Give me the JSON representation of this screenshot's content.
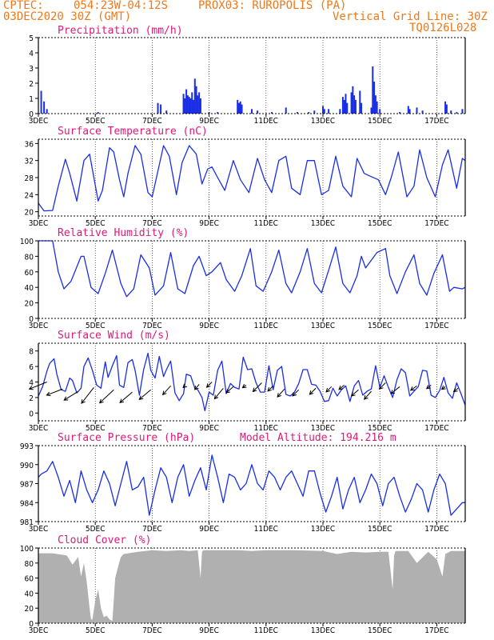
{
  "header": {
    "source": "CPTEC:",
    "coords": "054:23W-04:12S",
    "station": "PROX03: RUROPOLIS (PA)",
    "run": "03DEC2020 30Z (GMT)",
    "grid_note": "Vertical Grid Line: 30Z",
    "code": "TQ0126L028"
  },
  "colors": {
    "line": "#1a2ee6",
    "title": "#e0187a",
    "header": "#f07818",
    "cloud": "#b0b0b0"
  },
  "x_labels": [
    "3DEC",
    "5DEC",
    "7DEC",
    "9DEC",
    "11DEC",
    "13DEC",
    "15DEC",
    "17DEC"
  ],
  "chart_data": [
    {
      "id": "precip",
      "type": "bar",
      "title": "Precipitation (mm/h)",
      "ylim": [
        0,
        5
      ],
      "yticks": [
        "0",
        "1",
        "2",
        "3",
        "4",
        "5"
      ],
      "x_start_day": 3,
      "x_end_day": 18,
      "values": [
        [
          3.1,
          1.5
        ],
        [
          3.2,
          0.8
        ],
        [
          3.3,
          0.3
        ],
        [
          5.1,
          0.1
        ],
        [
          7.2,
          0.7
        ],
        [
          7.3,
          0.6
        ],
        [
          7.5,
          0.2
        ],
        [
          8.1,
          1.3
        ],
        [
          8.15,
          1.0
        ],
        [
          8.2,
          1.6
        ],
        [
          8.25,
          1.2
        ],
        [
          8.3,
          1.1
        ],
        [
          8.35,
          1.0
        ],
        [
          8.4,
          1.4
        ],
        [
          8.45,
          0.9
        ],
        [
          8.5,
          2.3
        ],
        [
          8.55,
          1.8
        ],
        [
          8.6,
          1.2
        ],
        [
          8.65,
          1.4
        ],
        [
          8.7,
          1.0
        ],
        [
          9.0,
          0.1
        ],
        [
          9.3,
          0.1
        ],
        [
          10.0,
          0.9
        ],
        [
          10.05,
          0.7
        ],
        [
          10.1,
          0.8
        ],
        [
          10.15,
          0.6
        ],
        [
          10.5,
          0.3
        ],
        [
          10.7,
          0.2
        ],
        [
          11.2,
          0.1
        ],
        [
          11.7,
          0.4
        ],
        [
          12.1,
          0.1
        ],
        [
          12.5,
          0.1
        ],
        [
          12.7,
          0.2
        ],
        [
          13.0,
          0.5
        ],
        [
          13.05,
          0.3
        ],
        [
          13.2,
          0.3
        ],
        [
          13.6,
          0.3
        ],
        [
          13.7,
          1.1
        ],
        [
          13.75,
          0.9
        ],
        [
          13.8,
          1.3
        ],
        [
          13.85,
          0.7
        ],
        [
          14.0,
          1.4
        ],
        [
          14.05,
          1.8
        ],
        [
          14.1,
          1.2
        ],
        [
          14.15,
          0.9
        ],
        [
          14.3,
          1.5
        ],
        [
          14.35,
          0.7
        ],
        [
          14.7,
          0.4
        ],
        [
          14.75,
          3.1
        ],
        [
          14.8,
          2.1
        ],
        [
          14.85,
          1.2
        ],
        [
          14.9,
          0.8
        ],
        [
          15.0,
          0.3
        ],
        [
          15.7,
          0.1
        ],
        [
          16.0,
          0.5
        ],
        [
          16.05,
          0.3
        ],
        [
          16.3,
          0.4
        ],
        [
          16.5,
          0.2
        ],
        [
          17.3,
          0.8
        ],
        [
          17.35,
          0.6
        ],
        [
          17.5,
          0.2
        ],
        [
          17.7,
          0.1
        ],
        [
          17.9,
          0.3
        ]
      ]
    },
    {
      "id": "temp",
      "type": "line",
      "title": "Surface Temperature (nC)",
      "ylim": [
        19,
        37
      ],
      "yticks": [
        "20",
        "24",
        "28",
        "32",
        "36"
      ],
      "ytick_values": [
        20,
        24,
        28,
        32,
        36
      ],
      "x": [
        3,
        3.2,
        3.5,
        3.7,
        3.95,
        4.1,
        4.35,
        4.6,
        4.8,
        5.1,
        5.25,
        5.5,
        5.65,
        5.85,
        6.0,
        6.15,
        6.4,
        6.6,
        6.85,
        7.0,
        7.4,
        7.6,
        7.85,
        8.05,
        8.3,
        8.55,
        8.75,
        8.95,
        9.1,
        9.3,
        9.55,
        9.85,
        10.1,
        10.4,
        10.7,
        10.95,
        11.2,
        11.45,
        11.7,
        11.9,
        12.2,
        12.45,
        12.7,
        12.95,
        13.2,
        13.45,
        13.7,
        14.0,
        14.2,
        14.45,
        14.6,
        14.95,
        15.2,
        15.4,
        15.65,
        15.95,
        16.2,
        16.4,
        16.65,
        16.95,
        17.2,
        17.4,
        17.7,
        17.9,
        18.0
      ],
      "values": [
        22,
        20.2,
        20.3,
        26,
        32.3,
        29,
        22.5,
        32,
        33.5,
        22.5,
        25,
        35,
        34,
        27.5,
        23.5,
        29,
        35.5,
        33.5,
        24.5,
        23.5,
        35.5,
        33,
        24,
        31.5,
        35.5,
        33.5,
        26.5,
        30,
        30.5,
        28,
        25,
        32,
        27.5,
        24.5,
        32.5,
        27.5,
        24.5,
        32,
        33,
        25.5,
        24,
        32,
        32,
        24,
        25,
        33,
        26,
        23.5,
        32.5,
        29,
        28.5,
        27.5,
        24,
        28,
        34,
        23.5,
        26,
        34.5,
        28,
        23.5,
        31,
        34.5,
        25.5,
        32.5,
        32
      ]
    },
    {
      "id": "rh",
      "type": "line",
      "title": "Relative Humidity (%)",
      "ylim": [
        0,
        100
      ],
      "yticks": [
        "0",
        "20",
        "40",
        "60",
        "80",
        "100"
      ],
      "ytick_values": [
        0,
        20,
        40,
        60,
        80,
        100
      ],
      "x": [
        3,
        3.5,
        3.7,
        3.9,
        4.15,
        4.5,
        4.6,
        4.85,
        5.1,
        5.35,
        5.6,
        5.9,
        6.1,
        6.35,
        6.6,
        6.9,
        7.1,
        7.4,
        7.65,
        7.9,
        8.15,
        8.45,
        8.65,
        8.9,
        9.1,
        9.4,
        9.6,
        9.9,
        10.15,
        10.45,
        10.65,
        10.9,
        11.2,
        11.45,
        11.7,
        11.9,
        12.2,
        12.45,
        12.7,
        12.95,
        13.2,
        13.45,
        13.7,
        13.95,
        14.2,
        14.35,
        14.5,
        14.7,
        14.9,
        15.2,
        15.35,
        15.6,
        15.9,
        16.2,
        16.4,
        16.65,
        16.9,
        17.2,
        17.45,
        17.6,
        17.9,
        18.0
      ],
      "values": [
        100,
        100,
        60,
        38,
        48,
        80,
        80,
        40,
        32,
        58,
        88,
        45,
        28,
        38,
        82,
        65,
        30,
        42,
        85,
        38,
        32,
        68,
        80,
        55,
        60,
        72,
        50,
        35,
        55,
        90,
        42,
        35,
        60,
        88,
        45,
        33,
        60,
        90,
        45,
        33,
        62,
        92,
        45,
        33,
        55,
        80,
        65,
        75,
        85,
        90,
        55,
        32,
        60,
        82,
        45,
        30,
        58,
        82,
        35,
        40,
        38,
        40
      ]
    },
    {
      "id": "wind",
      "type": "line",
      "title": "Surface Wind (m/s)",
      "ylim": [
        -1,
        9
      ],
      "yticks": [
        "0",
        "2",
        "4",
        "6",
        "8"
      ],
      "ytick_values": [
        0,
        2,
        4,
        6,
        8
      ],
      "x": [
        3,
        3.15,
        3.3,
        3.4,
        3.55,
        3.65,
        3.8,
        3.95,
        4.1,
        4.2,
        4.35,
        4.5,
        4.6,
        4.75,
        4.9,
        5.05,
        5.2,
        5.35,
        5.45,
        5.6,
        5.75,
        5.85,
        6.0,
        6.15,
        6.3,
        6.4,
        6.55,
        6.7,
        6.85,
        6.95,
        7.1,
        7.25,
        7.4,
        7.5,
        7.65,
        7.8,
        7.95,
        8.1,
        8.2,
        8.35,
        8.5,
        8.6,
        8.75,
        8.85,
        9.0,
        9.15,
        9.3,
        9.45,
        9.6,
        9.75,
        9.9,
        10.05,
        10.2,
        10.35,
        10.5,
        10.65,
        10.8,
        10.95,
        11.1,
        11.25,
        11.4,
        11.55,
        11.7,
        11.85,
        12.0,
        12.15,
        12.3,
        12.45,
        12.6,
        12.75,
        12.9,
        13.05,
        13.2,
        13.35,
        13.5,
        13.65,
        13.8,
        13.95,
        14.1,
        14.25,
        14.4,
        14.55,
        14.7,
        14.85,
        15.0,
        15.15,
        15.3,
        15.45,
        15.6,
        15.75,
        15.9,
        16.05,
        16.2,
        16.35,
        16.5,
        16.65,
        16.8,
        16.95,
        17.1,
        17.25,
        17.4,
        17.55,
        17.7,
        17.85,
        18.0
      ],
      "values": [
        2.2,
        3.4,
        5.4,
        6.4,
        7.0,
        5.0,
        3.0,
        2.8,
        4.5,
        4.2,
        2.6,
        3.2,
        6.0,
        7.1,
        5.5,
        3.6,
        3.2,
        6.6,
        4.6,
        6.1,
        7.4,
        3.6,
        3.3,
        6.5,
        6.9,
        5.5,
        2.3,
        5.6,
        7.7,
        5.5,
        4.5,
        7.3,
        4.7,
        5.6,
        6.7,
        2.6,
        1.6,
        2.5,
        5.0,
        4.8,
        3.2,
        3.0,
        2.0,
        0.3,
        2.7,
        2.3,
        5.5,
        6.7,
        2.5,
        3.8,
        3.3,
        3.1,
        7.2,
        5.6,
        5.7,
        3.9,
        2.7,
        2.7,
        6.1,
        3.0,
        5.5,
        6.0,
        2.4,
        2.2,
        2.7,
        3.8,
        5.6,
        5.6,
        3.7,
        3.6,
        2.8,
        1.5,
        1.6,
        3.2,
        2.2,
        3.0,
        3.5,
        1.5,
        3.5,
        4.2,
        2.3,
        2.8,
        3.1,
        6.1,
        3.3,
        4.8,
        3.3,
        2.0,
        4.3,
        5.7,
        5.2,
        2.2,
        2.8,
        3.4,
        5.5,
        5.4,
        2.3,
        2.0,
        2.9,
        4.6,
        2.6,
        1.9,
        3.9,
        2.5,
        1.0
      ],
      "barbs": [
        [
          3.3,
          4.0,
          -1.0,
          0.4
        ],
        [
          3.85,
          3.1,
          -0.9,
          0.35
        ],
        [
          4.4,
          2.8,
          -0.8,
          0.5
        ],
        [
          4.95,
          3.3,
          -0.7,
          0.9
        ],
        [
          5.65,
          3.0,
          -0.8,
          0.75
        ],
        [
          6.3,
          2.7,
          -0.7,
          0.6
        ],
        [
          6.95,
          3.0,
          -0.65,
          0.55
        ],
        [
          7.65,
          3.5,
          -0.45,
          0.5
        ],
        [
          8.15,
          3.5,
          -0.1,
          0.1
        ],
        [
          8.65,
          3.7,
          -0.25,
          0.3
        ],
        [
          9.1,
          4.0,
          -0.3,
          0.3
        ],
        [
          9.5,
          3.2,
          -0.5,
          0.6
        ],
        [
          9.85,
          3.4,
          -0.4,
          0.35
        ],
        [
          10.3,
          3.6,
          -0.2,
          0.15
        ],
        [
          10.85,
          3.9,
          -0.5,
          0.5
        ],
        [
          11.25,
          3.5,
          -0.3,
          0.3
        ],
        [
          11.65,
          3.1,
          -0.4,
          0.45
        ],
        [
          12.15,
          3.0,
          -0.35,
          0.35
        ],
        [
          12.75,
          3.2,
          -0.35,
          0.35
        ],
        [
          13.3,
          3.4,
          -0.3,
          0.3
        ],
        [
          13.75,
          3.6,
          -0.3,
          0.25
        ],
        [
          14.25,
          3.0,
          -0.4,
          0.35
        ],
        [
          14.7,
          2.8,
          -0.4,
          0.45
        ],
        [
          15.2,
          3.9,
          -0.35,
          0.35
        ],
        [
          15.7,
          3.4,
          -0.5,
          0.4
        ],
        [
          16.3,
          3.5,
          -0.35,
          0.25
        ],
        [
          16.8,
          3.6,
          -0.25,
          0.2
        ],
        [
          17.3,
          3.4,
          -0.2,
          0.15
        ],
        [
          17.75,
          3.2,
          -0.25,
          0.2
        ]
      ]
    },
    {
      "id": "pres",
      "type": "line",
      "title": "Surface Pressure (hPa)",
      "annotation": "Model Altitude: 194.216 m",
      "ylim": [
        981,
        993
      ],
      "yticks": [
        "981",
        "984",
        "987",
        "990",
        "993"
      ],
      "ytick_values": [
        981,
        984,
        987,
        990,
        993
      ],
      "x": [
        3,
        3.1,
        3.3,
        3.5,
        3.7,
        3.9,
        4.1,
        4.3,
        4.5,
        4.7,
        4.9,
        5.1,
        5.3,
        5.5,
        5.7,
        5.9,
        6.1,
        6.3,
        6.5,
        6.7,
        6.9,
        7.1,
        7.3,
        7.5,
        7.7,
        7.9,
        8.1,
        8.3,
        8.5,
        8.7,
        8.9,
        9.1,
        9.3,
        9.5,
        9.7,
        9.9,
        10.1,
        10.3,
        10.5,
        10.7,
        10.9,
        11.1,
        11.3,
        11.5,
        11.7,
        11.9,
        12.1,
        12.3,
        12.5,
        12.7,
        12.9,
        13.1,
        13.3,
        13.5,
        13.7,
        13.9,
        14.1,
        14.3,
        14.5,
        14.7,
        14.9,
        15.1,
        15.3,
        15.5,
        15.7,
        15.9,
        16.1,
        16.3,
        16.5,
        16.7,
        16.9,
        17.1,
        17.3,
        17.5,
        17.7,
        17.9,
        18.0
      ],
      "values": [
        988,
        988.5,
        989,
        990.5,
        988,
        985,
        987.5,
        984,
        989,
        986,
        984,
        986,
        989,
        987,
        983.5,
        987,
        990.5,
        986,
        986.5,
        988,
        982,
        986,
        989.5,
        988,
        984,
        988,
        990,
        985,
        987.5,
        989.5,
        986,
        991.5,
        988,
        984,
        988.5,
        988,
        986,
        987,
        990,
        987,
        986,
        989,
        988,
        986,
        988,
        989,
        987,
        985,
        989,
        989,
        985.5,
        982.5,
        985,
        988,
        983,
        986,
        988,
        984,
        986,
        988.5,
        987,
        983.5,
        987,
        988,
        985,
        982.5,
        984.5,
        987,
        986,
        982.5,
        986,
        988.5,
        987,
        982,
        983,
        984,
        984
      ]
    },
    {
      "id": "cloud",
      "type": "area",
      "title": "Cloud Cover (%)",
      "ylim": [
        0,
        100
      ],
      "yticks": [
        "0",
        "20",
        "40",
        "60",
        "80",
        "100"
      ],
      "ytick_values": [
        0,
        20,
        40,
        60,
        80,
        100
      ],
      "x": [
        3,
        3.5,
        4.0,
        4.2,
        4.4,
        4.5,
        4.6,
        4.7,
        4.8,
        4.85,
        4.9,
        5.0,
        5.1,
        5.2,
        5.3,
        5.4,
        5.5,
        5.6,
        5.7,
        5.8,
        5.9,
        6.0,
        6.5,
        7.0,
        7.5,
        8.0,
        8.3,
        8.6,
        8.7,
        8.75,
        8.8,
        9.0,
        10.0,
        10.5,
        11.0,
        12.0,
        13.0,
        13.5,
        14.0,
        14.5,
        15.0,
        15.3,
        15.45,
        15.5,
        15.55,
        16.0,
        16.3,
        16.7,
        17.0,
        17.2,
        17.3,
        17.5,
        18.0
      ],
      "values": [
        93,
        93,
        90,
        78,
        88,
        62,
        80,
        55,
        20,
        5,
        5,
        30,
        45,
        20,
        8,
        10,
        5,
        3,
        60,
        75,
        88,
        92,
        95,
        97,
        96,
        97,
        96,
        97,
        60,
        95,
        97,
        97,
        97,
        96,
        97,
        97,
        96,
        92,
        95,
        94,
        95,
        95,
        45,
        90,
        96,
        96,
        80,
        95,
        85,
        62,
        92,
        96,
        96
      ]
    }
  ]
}
